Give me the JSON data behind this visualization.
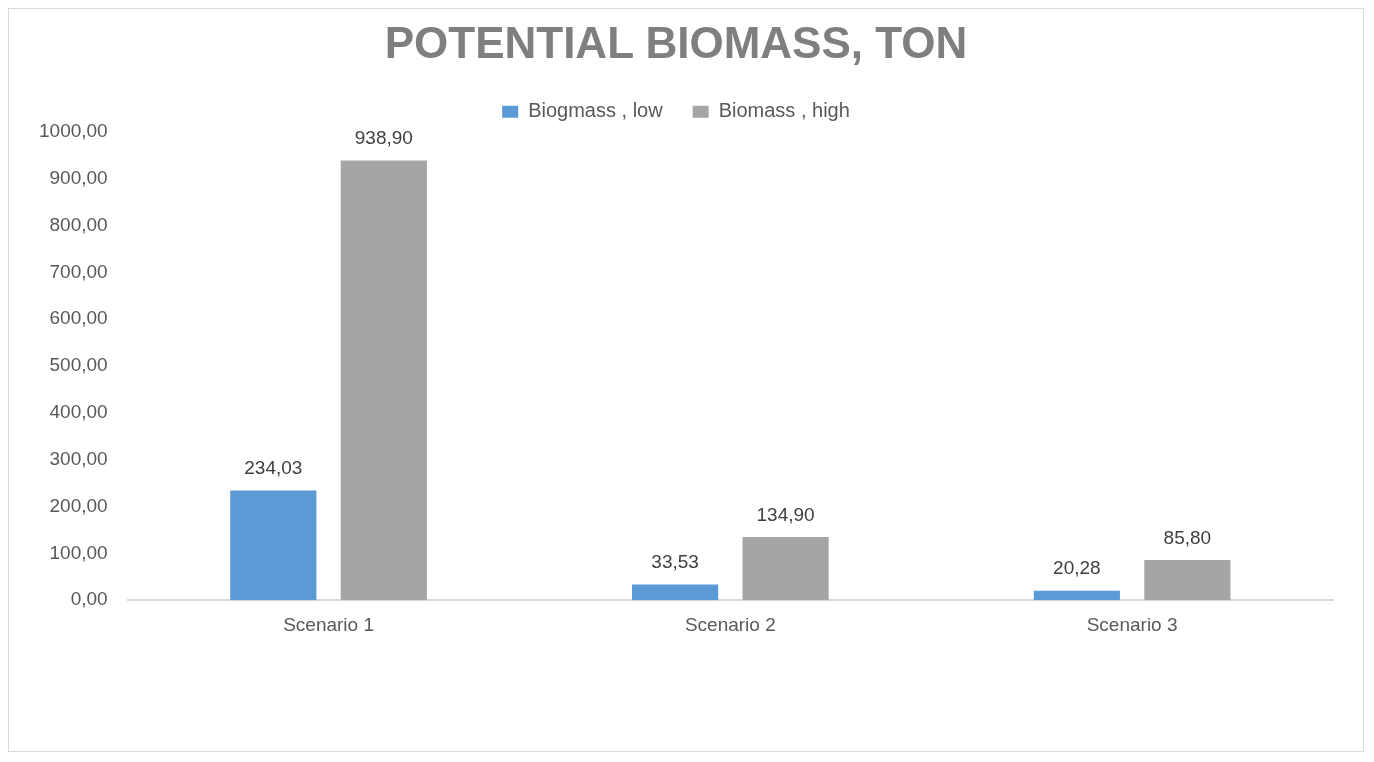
{
  "chart_data": {
    "type": "bar",
    "title": "POTENTIAL BIOMASS, TON",
    "categories": [
      "Scenario 1",
      "Scenario 2",
      "Scenario 3"
    ],
    "series": [
      {
        "name": "Biogmass , low",
        "color": "#5b9bd5",
        "values": [
          234.03,
          33.53,
          20.28
        ],
        "value_labels": [
          "234,03",
          "33,53",
          "20,28"
        ]
      },
      {
        "name": "Biomass , high",
        "color": "#a5a5a5",
        "values": [
          938.9,
          134.9,
          85.8
        ],
        "value_labels": [
          "938,90",
          "134,90",
          "85,80"
        ]
      }
    ],
    "ylim": [
      0,
      1000
    ],
    "yticks": [
      {
        "value": 0,
        "label": "0,00"
      },
      {
        "value": 100,
        "label": "100,00"
      },
      {
        "value": 200,
        "label": "200,00"
      },
      {
        "value": 300,
        "label": "300,00"
      },
      {
        "value": 400,
        "label": "400,00"
      },
      {
        "value": 500,
        "label": "500,00"
      },
      {
        "value": 600,
        "label": "600,00"
      },
      {
        "value": 700,
        "label": "700,00"
      },
      {
        "value": 800,
        "label": "800,00"
      },
      {
        "value": 900,
        "label": "900,00"
      },
      {
        "value": 1000,
        "label": "1000,00"
      }
    ],
    "grid": false,
    "legend": "top"
  }
}
